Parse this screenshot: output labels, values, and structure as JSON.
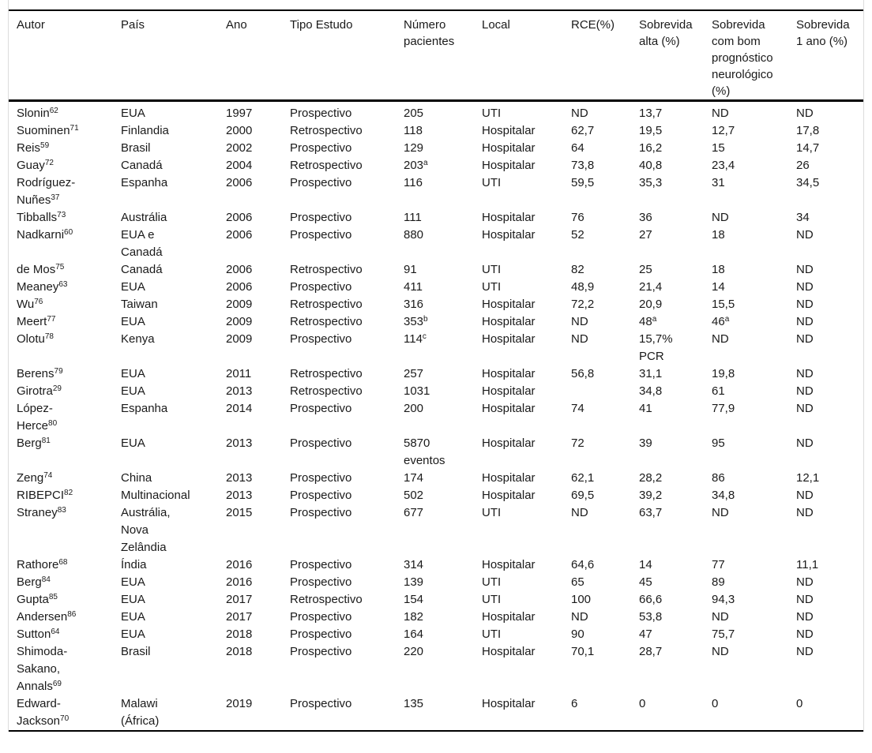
{
  "table": {
    "columns": [
      "Autor",
      "País",
      "Ano",
      "Tipo Estudo",
      "Número\npacientes",
      "Local",
      "RCE(%)",
      "Sobrevida\nalta (%)",
      "Sobrevida\ncom bom\nprognóstico\nneurológico\n(%)",
      "Sobrevida\n1 ano (%)"
    ],
    "rows": [
      [
        [
          "Slonin",
          "62"
        ],
        "EUA",
        "1997",
        "Prospectivo",
        "205",
        "UTI",
        "ND",
        "13,7",
        "ND",
        "ND"
      ],
      [
        [
          "Suominen",
          "71"
        ],
        "Finlandia",
        "2000",
        "Retrospectivo",
        "118",
        "Hospitalar",
        "62,7",
        "19,5",
        "12,7",
        "17,8"
      ],
      [
        [
          "Reis",
          "59"
        ],
        "Brasil",
        "2002",
        "Prospectivo",
        "129",
        "Hospitalar",
        "64",
        "16,2",
        "15",
        "14,7"
      ],
      [
        [
          "Guay",
          "72"
        ],
        "Canadá",
        "2004",
        "Retrospectivo",
        [
          "203",
          "a"
        ],
        "Hospitalar",
        "73,8",
        "40,8",
        "23,4",
        "26"
      ],
      [
        [
          "Rodríguez-\nNuñes",
          "37"
        ],
        "Espanha",
        "2006",
        "Prospectivo",
        "116",
        "UTI",
        "59,5",
        "35,3",
        "31",
        "34,5"
      ],
      [
        [
          "Tibballs",
          "73"
        ],
        "Austrália",
        "2006",
        "Prospectivo",
        "111",
        "Hospitalar",
        "76",
        "36",
        "ND",
        "34"
      ],
      [
        [
          "Nadkarni",
          "60"
        ],
        "EUA e\nCanadá",
        "2006",
        "Prospectivo",
        "880",
        "Hospitalar",
        "52",
        "27",
        "18",
        "ND"
      ],
      [
        [
          "de Mos",
          "75"
        ],
        "Canadá",
        "2006",
        "Retrospectivo",
        "91",
        "UTI",
        "82",
        "25",
        "18",
        "ND"
      ],
      [
        [
          "Meaney",
          "63"
        ],
        "EUA",
        "2006",
        "Prospectivo",
        "411",
        "UTI",
        "48,9",
        "21,4",
        "14",
        "ND"
      ],
      [
        [
          "Wu",
          "76"
        ],
        "Taiwan",
        "2009",
        "Retrospectivo",
        "316",
        "Hospitalar",
        "72,2",
        "20,9",
        "15,5",
        "ND"
      ],
      [
        [
          "Meert",
          "77"
        ],
        "EUA",
        "2009",
        "Retrospectivo",
        [
          "353",
          "b"
        ],
        "Hospitalar",
        "ND",
        [
          "48",
          "a"
        ],
        [
          "46",
          "a"
        ],
        "ND"
      ],
      [
        [
          "Olotu",
          "78"
        ],
        "Kenya",
        "2009",
        "Prospectivo",
        [
          "114",
          "c"
        ],
        "Hospitalar",
        "ND",
        "15,7%\nPCR",
        "ND",
        "ND"
      ],
      [
        [
          "Berens",
          "79"
        ],
        "EUA",
        "2011",
        "Retrospectivo",
        "257",
        "Hospitalar",
        "56,8",
        "31,1",
        "19,8",
        "ND"
      ],
      [
        [
          "Girotra",
          "29"
        ],
        "EUA",
        "2013",
        "Retrospectivo",
        "1031",
        "Hospitalar",
        "",
        "34,8",
        "61",
        "ND"
      ],
      [
        [
          "López-\nHerce",
          "80"
        ],
        "Espanha",
        "2014",
        "Prospectivo",
        "200",
        "Hospitalar",
        "74",
        "41",
        "77,9",
        "ND"
      ],
      [
        [
          "Berg",
          "81"
        ],
        "EUA",
        "2013",
        "Prospectivo",
        "5870\neventos",
        "Hospitalar",
        "72",
        "39",
        "95",
        "ND"
      ],
      [
        [
          "Zeng",
          "74"
        ],
        "China",
        "2013",
        "Prospectivo",
        "174",
        "Hospitalar",
        "62,1",
        "28,2",
        "86",
        "12,1"
      ],
      [
        [
          "RIBEPCI",
          "82"
        ],
        "Multinacional",
        "2013",
        "Prospectivo",
        "502",
        "Hospitalar",
        "69,5",
        "39,2",
        "34,8",
        "ND"
      ],
      [
        [
          "Straney",
          "83"
        ],
        "Austrália,\nNova\nZelândia",
        "2015",
        "Prospectivo",
        "677",
        "UTI",
        "ND",
        "63,7",
        "ND",
        "ND"
      ],
      [
        [
          "Rathore",
          "68"
        ],
        "Índia",
        "2016",
        "Prospectivo",
        "314",
        "Hospitalar",
        "64,6",
        "14",
        "77",
        "11,1"
      ],
      [
        [
          "Berg",
          "84"
        ],
        "EUA",
        "2016",
        "Prospectivo",
        "139",
        "UTI",
        "65",
        "45",
        "89",
        "ND"
      ],
      [
        [
          "Gupta",
          "85"
        ],
        "EUA",
        "2017",
        "Retrospectivo",
        "154",
        "UTI",
        "100",
        "66,6",
        "94,3",
        "ND"
      ],
      [
        [
          "Andersen",
          "86"
        ],
        "EUA",
        "2017",
        "Prospectivo",
        "182",
        "Hospitalar",
        "ND",
        "53,8",
        "ND",
        "ND"
      ],
      [
        [
          "Sutton",
          "64"
        ],
        "EUA",
        "2018",
        "Prospectivo",
        "164",
        "UTI",
        "90",
        "47",
        "75,7",
        "ND"
      ],
      [
        [
          "Shimoda-\nSakano,\nAnnals",
          "69"
        ],
        "Brasil",
        "2018",
        "Prospectivo",
        "220",
        "Hospitalar",
        "70,1",
        "28,7",
        "ND",
        "ND"
      ],
      [
        [
          "Edward-\nJackson",
          "70"
        ],
        "Malawi\n(África)",
        "2019",
        "Prospectivo",
        "135",
        "Hospitalar",
        "6",
        "0",
        "0",
        "0"
      ]
    ]
  }
}
